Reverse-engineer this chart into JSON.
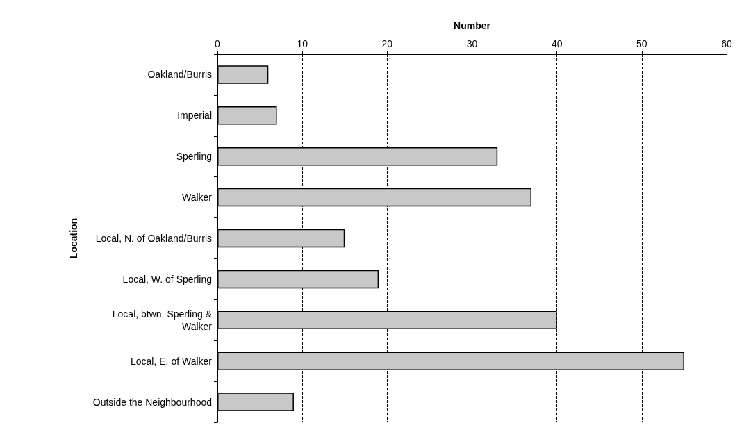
{
  "chart_data": {
    "type": "bar",
    "orientation": "horizontal",
    "xlabel": "Number",
    "ylabel": "Location",
    "categories": [
      "Oakland/Burris",
      "Imperial",
      "Sperling",
      "Walker",
      "Local, N. of Oakland/Burris",
      "Local, W. of Sperling",
      "Local, btwn. Sperling &\nWalker",
      "Local, E. of Walker",
      "Outside the Neighbourhood"
    ],
    "values": [
      6,
      7,
      33,
      37,
      15,
      19,
      40,
      55,
      9
    ],
    "color": "#c8c8c8",
    "xlim": [
      0,
      60
    ],
    "xticks": [
      0,
      10,
      20,
      30,
      40,
      50,
      60
    ],
    "grid": "x"
  }
}
